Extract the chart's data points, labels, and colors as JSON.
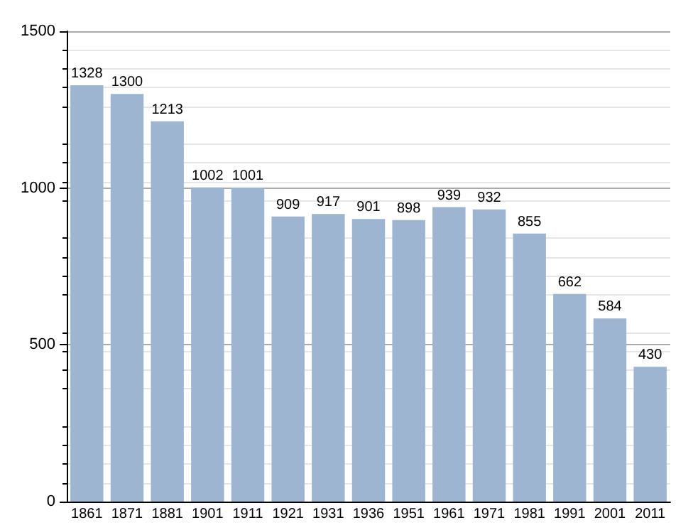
{
  "chart_data": {
    "type": "bar",
    "categories": [
      "1861",
      "1871",
      "1881",
      "1901",
      "1911",
      "1921",
      "1931",
      "1936",
      "1951",
      "1961",
      "1971",
      "1981",
      "1991",
      "2001",
      "2011"
    ],
    "values": [
      1328,
      1300,
      1213,
      1002,
      1001,
      909,
      917,
      901,
      898,
      939,
      932,
      855,
      662,
      584,
      430
    ],
    "color": "#9db5d0",
    "ylim": [
      0,
      1500
    ],
    "yticks": [
      0,
      500,
      1000,
      1500
    ],
    "grid": "y",
    "data_labels": true
  }
}
